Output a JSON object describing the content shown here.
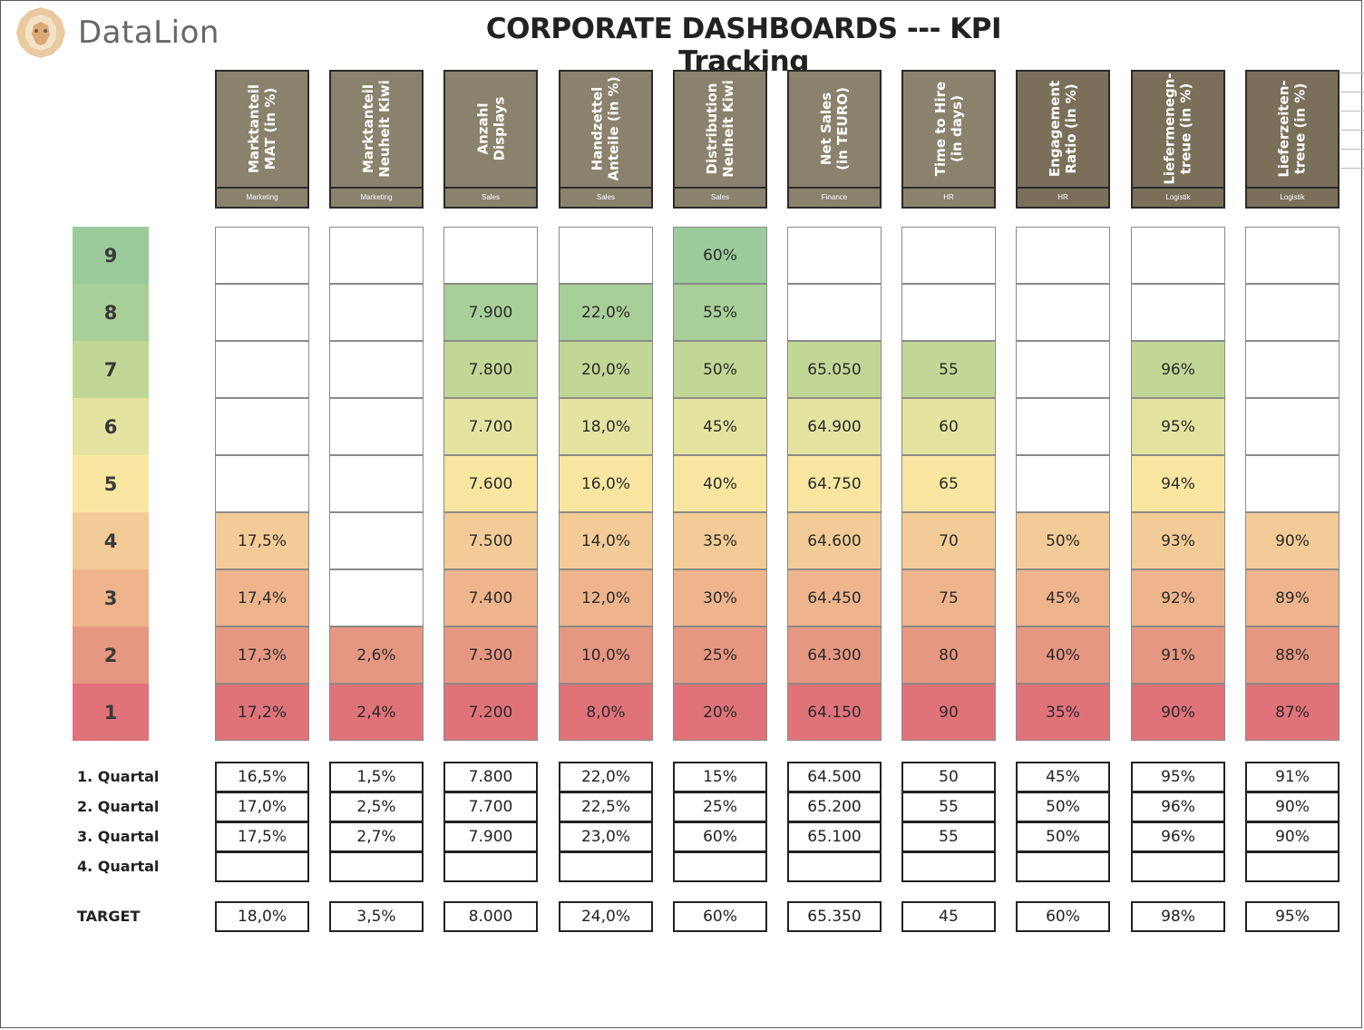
{
  "brand": "DataLion",
  "title": "CORPORATE DASHBOARDS --- KPI Tracking",
  "colors": {
    "header_bg": "#8b826d",
    "level": {
      "1": "#e0737a",
      "2": "#e69781",
      "3": "#eeb48c",
      "4": "#f3cb96",
      "5": "#f8e6a0",
      "6": "#e4e3a0",
      "7": "#c2d795",
      "8": "#a8cf98",
      "9": "#9ccb9b"
    }
  },
  "scale": [
    "9",
    "8",
    "7",
    "6",
    "5",
    "4",
    "3",
    "2",
    "1"
  ],
  "kpis": [
    {
      "label": "Marktanteil\nMAT (in %)",
      "dept": "Marketing",
      "levels": [
        "",
        "",
        "",
        "",
        "",
        "17,5%",
        "17,4%",
        "17,3%",
        "17,2%"
      ],
      "quarters": [
        "16,5%",
        "17,0%",
        "17,5%",
        ""
      ],
      "target": "18,0%"
    },
    {
      "label": "Marktanteil\nNeuheit Kiwi",
      "dept": "Marketing",
      "levels": [
        "",
        "",
        "",
        "",
        "",
        "",
        "",
        "2,6%",
        "2,4%"
      ],
      "quarters": [
        "1,5%",
        "2,5%",
        "2,7%",
        ""
      ],
      "target": "3,5%"
    },
    {
      "label": "Anzahl\nDisplays",
      "dept": "Sales",
      "levels": [
        "",
        "7.900",
        "7.800",
        "7.700",
        "7.600",
        "7.500",
        "7.400",
        "7.300",
        "7.200"
      ],
      "quarters": [
        "7.800",
        "7.700",
        "7.900",
        ""
      ],
      "target": "8.000"
    },
    {
      "label": "Handzettel\nAnteile (in %)",
      "dept": "Sales",
      "levels": [
        "",
        "22,0%",
        "20,0%",
        "18,0%",
        "16,0%",
        "14,0%",
        "12,0%",
        "10,0%",
        "8,0%"
      ],
      "quarters": [
        "22,0%",
        "22,5%",
        "23,0%",
        ""
      ],
      "target": "24,0%"
    },
    {
      "label": "Distribution\nNeuheit Kiwi",
      "dept": "Sales",
      "levels": [
        "60%",
        "55%",
        "50%",
        "45%",
        "40%",
        "35%",
        "30%",
        "25%",
        "20%"
      ],
      "quarters": [
        "15%",
        "25%",
        "60%",
        ""
      ],
      "target": "60%"
    },
    {
      "label": "Net Sales\n(in TEURO)",
      "dept": "Finance",
      "levels": [
        "",
        "",
        "65.050",
        "64.900",
        "64.750",
        "64.600",
        "64.450",
        "64.300",
        "64.150"
      ],
      "quarters": [
        "64.500",
        "65.200",
        "65.100",
        ""
      ],
      "target": "65.350"
    },
    {
      "label": "Time to Hire\n(in days)",
      "dept": "HR",
      "levels": [
        "",
        "",
        "55",
        "60",
        "65",
        "70",
        "75",
        "80",
        "90"
      ],
      "quarters": [
        "50",
        "55",
        "55",
        ""
      ],
      "target": "45"
    },
    {
      "label": "Engagement\nRatio (in %)",
      "dept": "HR",
      "levels": [
        "",
        "",
        "",
        "",
        "",
        "50%",
        "45%",
        "40%",
        "35%"
      ],
      "quarters": [
        "45%",
        "50%",
        "50%",
        ""
      ],
      "target": "60%"
    },
    {
      "label": "Liefermenegn-\ntreue (in %)",
      "dept": "Logistik",
      "levels": [
        "",
        "",
        "96%",
        "95%",
        "94%",
        "93%",
        "92%",
        "91%",
        "90%"
      ],
      "quarters": [
        "95%",
        "96%",
        "96%",
        ""
      ],
      "target": "98%"
    },
    {
      "label": "Lieferzeiten-\ntreue (in %)",
      "dept": "Logistik",
      "levels": [
        "",
        "",
        "",
        "",
        "",
        "90%",
        "89%",
        "88%",
        "87%"
      ],
      "quarters": [
        "91%",
        "90%",
        "90%",
        ""
      ],
      "target": "95%"
    }
  ],
  "quarter_labels": [
    "1. Quartal",
    "2. Quartal",
    "3. Quartal",
    "4. Quartal"
  ],
  "target_label": "TARGET"
}
